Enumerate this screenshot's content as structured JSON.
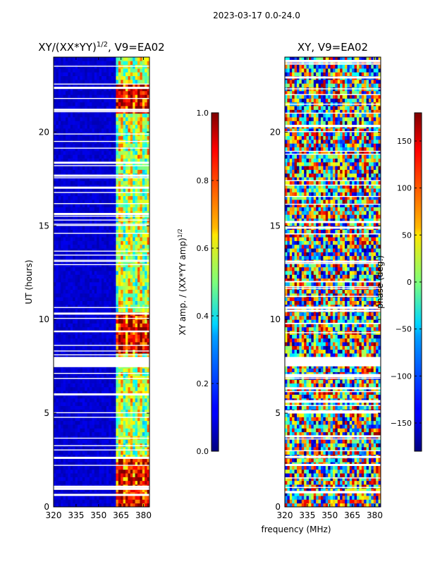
{
  "suptitle": "2023-03-17 0.0-24.0",
  "chart_data": [
    {
      "type": "heatmap",
      "title": "XY/(XX*YY)",
      "title_exponent": "1/2",
      "title_suffix": ", V9=EA02",
      "xlabel": "",
      "ylabel": "UT (hours)",
      "x_ticks": [
        "320",
        "335",
        "350",
        "365",
        "380"
      ],
      "y_ticks": [
        "0",
        "5",
        "10",
        "15",
        "20"
      ],
      "xlim": [
        320,
        384
      ],
      "ylim": [
        0,
        24
      ],
      "colorbar": {
        "label": "XY amp. / (XX*YY amp)",
        "label_exponent": "1/2",
        "range": [
          0.0,
          1.0
        ],
        "ticks": [
          "0.0",
          "0.2",
          "0.4",
          "0.6",
          "0.8",
          "1.0"
        ],
        "colormap": "jet"
      },
      "data_gaps_hours": [
        [
          7.5,
          8.0
        ]
      ],
      "description_values": {
        "low_freq_band_MHz": [
          320,
          361
        ],
        "low_freq_band_value": 0.05,
        "high_freq_band_MHz": [
          361,
          384
        ],
        "high_freq_band_value_range": [
          0.3,
          0.85
        ],
        "elevated_periods_hours": [
          [
            8.3,
            10.3
          ],
          [
            0.0,
            2.5
          ],
          [
            21.0,
            22.5
          ]
        ]
      }
    },
    {
      "type": "heatmap",
      "title": "XY, V9=EA02",
      "xlabel": "frequency (MHz)",
      "ylabel": "",
      "x_ticks": [
        "320",
        "335",
        "350",
        "365",
        "380"
      ],
      "y_ticks": [
        "0",
        "5",
        "10",
        "15",
        "20"
      ],
      "xlim": [
        320,
        384
      ],
      "ylim": [
        0,
        24
      ],
      "colorbar": {
        "label": "phase (deg.)",
        "range": [
          -180,
          180
        ],
        "ticks": [
          "−150",
          "−100",
          "−50",
          "0",
          "50",
          "100",
          "150"
        ],
        "colormap": "jet"
      },
      "data_gaps_hours": [
        [
          7.5,
          8.0
        ]
      ],
      "description_values": {
        "phase_distribution": "noisy, spanning full -180 to 180 range"
      }
    }
  ]
}
